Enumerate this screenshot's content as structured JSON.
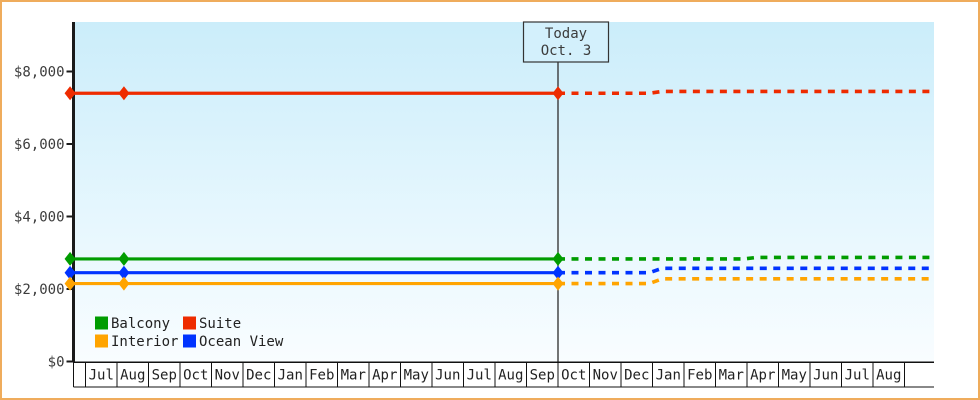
{
  "frame": {
    "border_color": "#efac5c",
    "background": "#ffffff"
  },
  "plot": {
    "bg_top_color": "#cbedfa",
    "bg_bottom_color": "#f9fdff",
    "axis_color": "#1a1a1a",
    "label_color": "#3c3c3c"
  },
  "today_box": {
    "line1": "Today",
    "line2": "Oct. 3",
    "bg": "#d3f0fc",
    "border": "#333333"
  },
  "legend": {
    "rows": [
      [
        {
          "label": "Balcony",
          "color": "#009c00"
        },
        {
          "label": "Suite",
          "color": "#ee2b00"
        }
      ],
      [
        {
          "label": "Interior",
          "color": "#ffa400"
        },
        {
          "label": "Ocean View",
          "color": "#0033ff"
        }
      ]
    ]
  },
  "chart_data": {
    "type": "line",
    "title": "",
    "unit": "USD",
    "ylabel": "",
    "xlabel": "",
    "ylim": [
      0,
      9400
    ],
    "grid": false,
    "legend_position": "bottom-left-inside",
    "y_ticks": [
      {
        "value": 0,
        "label": "$0"
      },
      {
        "value": 2000,
        "label": "$2,000"
      },
      {
        "value": 4000,
        "label": "$4,000"
      },
      {
        "value": 6000,
        "label": "$6,000"
      },
      {
        "value": 8000,
        "label": "$8,000"
      }
    ],
    "month_axis": [
      "Jul",
      "Aug",
      "Sep",
      "Oct",
      "Nov",
      "Dec",
      "Jan",
      "Feb",
      "Mar",
      "Apr",
      "May",
      "Jun",
      "Jul",
      "Aug",
      "Sep",
      "Oct",
      "Nov",
      "Dec",
      "Jan",
      "Feb",
      "Mar",
      "Apr",
      "May",
      "Jun",
      "Jul",
      "Aug"
    ],
    "today": {
      "m": 15.0,
      "label": "Oct. 3"
    },
    "series": [
      {
        "name": "Suite",
        "color": "#ee2b00",
        "observed": [
          {
            "m": -0.49,
            "price": 7400
          },
          {
            "m": 1.22,
            "price": 7400
          },
          {
            "m": 15.0,
            "price": 7400
          }
        ],
        "forecast": [
          {
            "m": 15.0,
            "price": 7400
          },
          {
            "m": 17.9,
            "price": 7400
          },
          {
            "m": 18.3,
            "price": 7450
          },
          {
            "m": 26.9,
            "price": 7450
          }
        ]
      },
      {
        "name": "Balcony",
        "color": "#009c00",
        "observed": [
          {
            "m": -0.49,
            "price": 2830
          },
          {
            "m": 1.22,
            "price": 2830
          },
          {
            "m": 15.0,
            "price": 2830
          }
        ],
        "forecast": [
          {
            "m": 15.0,
            "price": 2830
          },
          {
            "m": 20.9,
            "price": 2830
          },
          {
            "m": 21.3,
            "price": 2870
          },
          {
            "m": 26.9,
            "price": 2870
          }
        ]
      },
      {
        "name": "Ocean View",
        "color": "#0033ff",
        "observed": [
          {
            "m": -0.49,
            "price": 2450
          },
          {
            "m": 1.22,
            "price": 2450
          },
          {
            "m": 15.0,
            "price": 2450
          }
        ],
        "forecast": [
          {
            "m": 15.0,
            "price": 2450
          },
          {
            "m": 17.9,
            "price": 2450
          },
          {
            "m": 18.3,
            "price": 2570
          },
          {
            "m": 26.9,
            "price": 2570
          }
        ]
      },
      {
        "name": "Interior",
        "color": "#ffa400",
        "observed": [
          {
            "m": -0.49,
            "price": 2150
          },
          {
            "m": 1.22,
            "price": 2150
          },
          {
            "m": 15.0,
            "price": 2150
          }
        ],
        "forecast": [
          {
            "m": 15.0,
            "price": 2150
          },
          {
            "m": 17.9,
            "price": 2150
          },
          {
            "m": 18.3,
            "price": 2280
          },
          {
            "m": 26.9,
            "price": 2280
          }
        ]
      }
    ]
  }
}
